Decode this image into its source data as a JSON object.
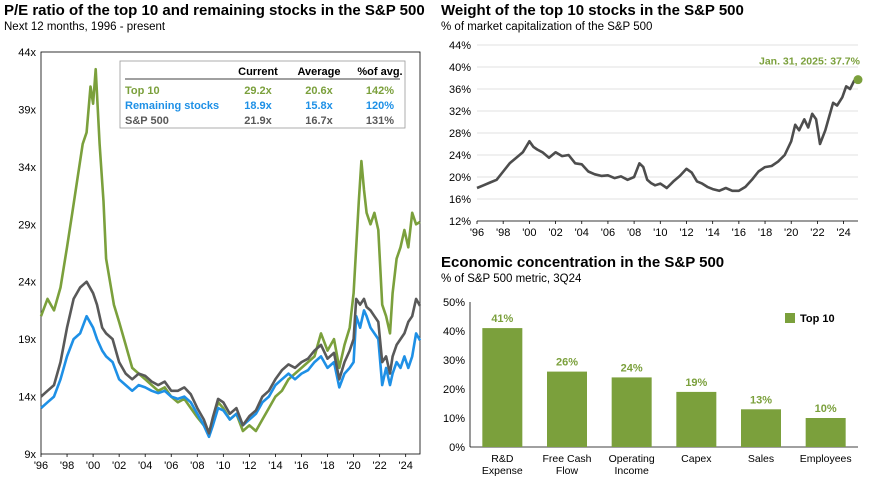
{
  "chart_data": [
    {
      "type": "line",
      "title": "P/E ratio of the top 10 and remaining stocks in the S&P 500",
      "subtitle": "Next 12 months, 1996 - present",
      "xlabel": "",
      "ylabel": "",
      "xlim": [
        1996,
        2025.1
      ],
      "ylim": [
        9,
        44
      ],
      "y_ticks": [
        9,
        14,
        19,
        24,
        29,
        34,
        39,
        44
      ],
      "y_tick_labels": [
        "9x",
        "14x",
        "19x",
        "24x",
        "29x",
        "34x",
        "39x",
        "44x"
      ],
      "x_tick_labels": [
        "'96",
        "'98",
        "'00",
        "'02",
        "'04",
        "'06",
        "'08",
        "'10",
        "'12",
        "'14",
        "'16",
        "'18",
        "'20",
        "'22",
        "'24"
      ],
      "grid": false,
      "legend": "table inside plot, top-right",
      "table": {
        "headers": [
          "",
          "Current",
          "Average",
          "%of avg."
        ],
        "rows": [
          [
            "Top 10",
            "29.2x",
            "20.6x",
            "142%"
          ],
          [
            "Remaining stocks",
            "18.9x",
            "15.8x",
            "120%"
          ],
          [
            "S&P 500",
            "21.9x",
            "16.7x",
            "131%"
          ]
        ]
      },
      "series": [
        {
          "name": "Top 10",
          "color": "#7ba03c",
          "x": [
            1996,
            1996.5,
            1997,
            1997.5,
            1998,
            1998.4,
            1998.8,
            1999.2,
            1999.5,
            1999.8,
            2000,
            2000.2,
            2000.5,
            2000.8,
            2001,
            2001.3,
            2001.6,
            2002,
            2002.5,
            2003,
            2003.5,
            2004,
            2004.5,
            2005,
            2005.5,
            2006,
            2006.5,
            2007,
            2007.5,
            2008,
            2008.5,
            2008.9,
            2009.2,
            2009.6,
            2010,
            2010.5,
            2011,
            2011.5,
            2012,
            2012.5,
            2013,
            2013.5,
            2014,
            2014.5,
            2015,
            2015.5,
            2016,
            2016.5,
            2017,
            2017.5,
            2018,
            2018.5,
            2018.9,
            2019.3,
            2019.7,
            2020,
            2020.2,
            2020.4,
            2020.6,
            2020.8,
            2021,
            2021.3,
            2021.6,
            2021.9,
            2022.2,
            2022.5,
            2022.8,
            2023,
            2023.3,
            2023.6,
            2023.9,
            2024.2,
            2024.5,
            2024.8,
            2025.1
          ],
          "y": [
            21,
            22.5,
            21.5,
            23.5,
            27,
            30,
            33,
            36,
            37,
            41,
            39.5,
            42.5,
            36,
            31,
            26,
            24,
            22,
            20.5,
            18.5,
            16.5,
            16,
            15.5,
            15,
            14.5,
            14.8,
            14,
            13.5,
            13.8,
            13,
            12.2,
            11.5,
            11,
            11.8,
            13.5,
            13,
            12,
            12.5,
            11,
            11.5,
            11,
            12,
            13,
            14,
            14.5,
            15.5,
            16,
            16.5,
            17,
            17.5,
            19.5,
            18,
            19,
            16.5,
            18.5,
            20,
            23,
            27,
            31,
            34.5,
            32,
            30,
            29,
            30,
            28.5,
            22,
            21,
            19.5,
            23,
            26,
            27,
            28.5,
            27,
            30,
            29,
            29.2
          ]
        },
        {
          "name": "Remaining stocks",
          "color": "#1e90e6",
          "x": [
            1996,
            1996.5,
            1997,
            1997.5,
            1998,
            1998.5,
            1999,
            1999.5,
            2000,
            2000.3,
            2000.7,
            2001,
            2001.5,
            2002,
            2002.5,
            2003,
            2003.5,
            2004,
            2004.5,
            2005,
            2005.5,
            2006,
            2006.5,
            2007,
            2007.5,
            2008,
            2008.5,
            2008.9,
            2009.2,
            2009.6,
            2010,
            2010.5,
            2011,
            2011.5,
            2012,
            2012.5,
            2013,
            2013.5,
            2014,
            2014.5,
            2015,
            2015.5,
            2016,
            2016.5,
            2017,
            2017.5,
            2018,
            2018.5,
            2018.9,
            2019.3,
            2019.7,
            2020,
            2020.2,
            2020.5,
            2020.8,
            2021,
            2021.3,
            2021.6,
            2021.9,
            2022.2,
            2022.5,
            2022.8,
            2023,
            2023.3,
            2023.6,
            2023.9,
            2024.2,
            2024.5,
            2024.8,
            2025.1
          ],
          "y": [
            13,
            13.5,
            14,
            15.5,
            17.5,
            19,
            19.5,
            21,
            20,
            19,
            18,
            17.5,
            17,
            15.5,
            15,
            14.5,
            15,
            14.8,
            14.5,
            14.3,
            14.5,
            14,
            13.8,
            14,
            13.5,
            12.5,
            11.5,
            10.5,
            11.5,
            13,
            12.8,
            12,
            12.5,
            11.5,
            12,
            12.5,
            13.5,
            14,
            15,
            15.5,
            16,
            15.5,
            16,
            16.3,
            17,
            17.5,
            16.5,
            17,
            14.8,
            16,
            16.5,
            17,
            21,
            20,
            21.5,
            21,
            20,
            19.5,
            19,
            15,
            16.5,
            15,
            16,
            17,
            16.5,
            17.5,
            16.5,
            17.5,
            19.5,
            18.9
          ]
        },
        {
          "name": "S&P 500",
          "color": "#595959",
          "x": [
            1996,
            1996.5,
            1997,
            1997.5,
            1998,
            1998.5,
            1999,
            1999.5,
            2000,
            2000.3,
            2000.7,
            2001,
            2001.5,
            2002,
            2002.5,
            2003,
            2003.5,
            2004,
            2004.5,
            2005,
            2005.5,
            2006,
            2006.5,
            2007,
            2007.5,
            2008,
            2008.5,
            2008.9,
            2009.2,
            2009.6,
            2010,
            2010.5,
            2011,
            2011.5,
            2012,
            2012.5,
            2013,
            2013.5,
            2014,
            2014.5,
            2015,
            2015.5,
            2016,
            2016.5,
            2017,
            2017.5,
            2018,
            2018.5,
            2018.9,
            2019.3,
            2019.7,
            2020,
            2020.2,
            2020.5,
            2020.8,
            2021,
            2021.3,
            2021.6,
            2021.9,
            2022.2,
            2022.5,
            2022.8,
            2023,
            2023.3,
            2023.6,
            2023.9,
            2024.2,
            2024.5,
            2024.8,
            2025.1
          ],
          "y": [
            14,
            14.5,
            15,
            17,
            20,
            22.5,
            23.5,
            24,
            23,
            22,
            20,
            19.5,
            19,
            17,
            16,
            15.5,
            16,
            15.8,
            15.3,
            15,
            15.3,
            14.5,
            14.5,
            14.8,
            14.2,
            13,
            12,
            10.8,
            12.2,
            13.8,
            13.5,
            12.5,
            13,
            11.5,
            12.3,
            12.8,
            14,
            14.5,
            15.5,
            16.3,
            16.8,
            16.5,
            17,
            17.3,
            18,
            18.5,
            17.3,
            17.8,
            15.5,
            17,
            18,
            19,
            22.5,
            22,
            22.5,
            21.8,
            21.5,
            21,
            20.5,
            17,
            17.5,
            16,
            17.5,
            18.5,
            19,
            19.5,
            20.5,
            21,
            22.5,
            21.9
          ]
        }
      ]
    },
    {
      "type": "line",
      "title": "Weight of the top 10 stocks in the S&P 500",
      "subtitle": "% of market capitalization of the S&P 500",
      "xlabel": "",
      "ylabel": "",
      "xlim": [
        1996,
        2025.1
      ],
      "ylim": [
        12,
        44
      ],
      "y_ticks": [
        12,
        16,
        20,
        24,
        28,
        32,
        36,
        40,
        44
      ],
      "y_tick_labels": [
        "12%",
        "16%",
        "20%",
        "24%",
        "28%",
        "32%",
        "36%",
        "40%",
        "44%"
      ],
      "x_tick_labels": [
        "'96",
        "'98",
        "'00",
        "'02",
        "'04",
        "'06",
        "'08",
        "'10",
        "'12",
        "'14",
        "'16",
        "'18",
        "'20",
        "'22",
        "'24"
      ],
      "grid": true,
      "annotation": "Jan. 31, 2025: 37.7%",
      "series": [
        {
          "name": "",
          "color": "#4d4d4d",
          "x": [
            1996,
            1996.5,
            1997,
            1997.5,
            1998,
            1998.5,
            1999,
            1999.5,
            2000,
            2000.3,
            2000.6,
            2001,
            2001.5,
            2002,
            2002.5,
            2003,
            2003.5,
            2004,
            2004.5,
            2005,
            2005.5,
            2006,
            2006.5,
            2007,
            2007.5,
            2008,
            2008.4,
            2008.7,
            2009,
            2009.3,
            2009.6,
            2010,
            2010.5,
            2011,
            2011.5,
            2012,
            2012.4,
            2012.8,
            2013.2,
            2013.6,
            2014,
            2014.5,
            2015,
            2015.5,
            2016,
            2016.5,
            2017,
            2017.5,
            2018,
            2018.5,
            2019,
            2019.5,
            2020,
            2020.3,
            2020.6,
            2021,
            2021.3,
            2021.6,
            2021.9,
            2022.2,
            2022.6,
            2022.9,
            2023.2,
            2023.5,
            2023.9,
            2024.2,
            2024.5,
            2024.8,
            2025.1
          ],
          "y": [
            18,
            18.5,
            19,
            19.5,
            21,
            22.5,
            23.5,
            24.5,
            26.5,
            25.5,
            25,
            24.5,
            23.5,
            24.5,
            23.8,
            24,
            22.5,
            22.3,
            21,
            20.5,
            20.2,
            20.3,
            19.8,
            20.1,
            19.5,
            20,
            22.5,
            21.8,
            19.5,
            18.9,
            18.5,
            18.8,
            18,
            19.2,
            20.2,
            21.5,
            20.8,
            19.2,
            18.8,
            18.2,
            17.8,
            17.5,
            18,
            17.5,
            17.5,
            18.2,
            19.5,
            21,
            21.8,
            22,
            22.8,
            24,
            26.5,
            29.5,
            28.5,
            30.5,
            29,
            31.5,
            30.5,
            26,
            28.5,
            31,
            33.5,
            33,
            34.5,
            36.5,
            36,
            37.5,
            37.7
          ]
        }
      ]
    },
    {
      "type": "bar",
      "title": "Economic concentration in the S&P 500",
      "subtitle": "% of S&P 500 metric, 3Q24",
      "xlabel": "",
      "ylabel": "",
      "ylim": [
        0,
        50
      ],
      "y_ticks": [
        0,
        10,
        20,
        30,
        40,
        50
      ],
      "y_tick_labels": [
        "0%",
        "10%",
        "20%",
        "30%",
        "40%",
        "50%"
      ],
      "categories": [
        [
          "R&D",
          "Expense"
        ],
        [
          "Free Cash",
          "Flow"
        ],
        [
          "Operating",
          "Income"
        ],
        [
          "Capex"
        ],
        [
          "Sales"
        ],
        [
          "Employees"
        ]
      ],
      "series": [
        {
          "name": "Top 10",
          "color": "#7ba03c",
          "values": [
            41,
            26,
            24,
            19,
            13,
            10
          ]
        }
      ],
      "value_labels": [
        "41%",
        "26%",
        "24%",
        "19%",
        "13%",
        "10%"
      ],
      "grid": false,
      "legend": "top-right"
    }
  ]
}
